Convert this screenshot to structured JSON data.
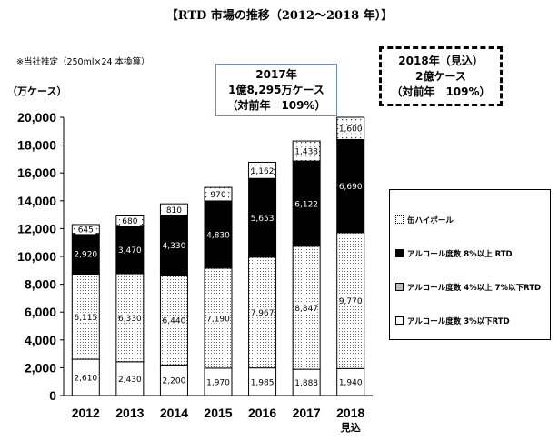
{
  "title": "【RTD 市場の推移（2012～2018 年）】",
  "note": "※当社推定（250ml×24 本換算）",
  "unit_label": "（万ケース）",
  "callout_2017": {
    "line1": "2017年",
    "line2": "1億8,295万ケース",
    "line3": "（対前年　109%）"
  },
  "callout_2018": {
    "line1": "2018年（見込）",
    "line2": "2億ケース",
    "line3": "（対前年　109%）"
  },
  "chart_data": {
    "type": "bar",
    "stacked": true,
    "categories": [
      "2012",
      "2013",
      "2014",
      "2015",
      "2016",
      "2017",
      "2018"
    ],
    "category_sublabels": [
      "",
      "",
      "",
      "",
      "",
      "",
      "見込"
    ],
    "ylim": [
      0,
      20000
    ],
    "yticks": [
      "0",
      "2,000",
      "4,000",
      "6,000",
      "8,000",
      "10,000",
      "12,000",
      "14,000",
      "16,000",
      "18,000",
      "20,000"
    ],
    "series": [
      {
        "name": "アルコール度数 3%以下RTD",
        "values": [
          2610,
          2430,
          2200,
          1970,
          1985,
          1888,
          1940
        ],
        "labels": [
          "2,610",
          "2,430",
          "2,200",
          "1,970",
          "1,985",
          "1,888",
          "1,940"
        ]
      },
      {
        "name": "アルコール度数 4%以上 7%以下RTD",
        "values": [
          6115,
          6330,
          6440,
          7190,
          7967,
          8847,
          9770
        ],
        "labels": [
          "6,115",
          "6,330",
          "6,440",
          "7,190",
          "7,967",
          "8,847",
          "9,770"
        ]
      },
      {
        "name": "アルコール度数 8%以上 RTD",
        "values": [
          2920,
          3470,
          4330,
          4830,
          5653,
          6122,
          6690
        ],
        "labels": [
          "2,920",
          "3,470",
          "4,330",
          "4,830",
          "5,653",
          "6,122",
          "6,690"
        ]
      },
      {
        "name": "缶ハイボール",
        "values": [
          645,
          680,
          810,
          970,
          1162,
          1438,
          1600
        ],
        "labels": [
          "645",
          "680",
          "810",
          "970",
          "1,162",
          "1,438",
          "1,600"
        ]
      }
    ]
  }
}
